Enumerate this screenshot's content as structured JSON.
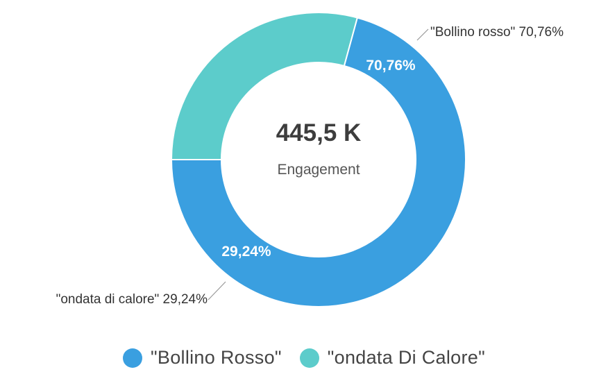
{
  "colors": {
    "bollino": "#3a9fe0",
    "ondata": "#5ccccb",
    "center_value": "#3d3d3d",
    "center_label": "#555555",
    "outer_label": "#333333",
    "leader_line": "#999999"
  },
  "chart_data": {
    "type": "pie",
    "variant": "donut",
    "center_value": "445,5 K",
    "center_label": "Engagement",
    "slices": [
      {
        "key": "bollino",
        "value": 70.76,
        "inner_label": "70,76%",
        "outer_label": "\"Bollino rosso\" 70,76%",
        "color": "#3a9fe0"
      },
      {
        "key": "ondata",
        "value": 29.24,
        "inner_label": "29,24%",
        "outer_label": "\"ondata di calore\" 29,24%",
        "color": "#5ccccb"
      }
    ],
    "legend": {
      "position": "bottom",
      "items": [
        {
          "label": "\"Bollino Rosso\"",
          "color": "#3a9fe0"
        },
        {
          "label": "\"ondata Di Calore\"",
          "color": "#5ccccb"
        }
      ]
    }
  }
}
